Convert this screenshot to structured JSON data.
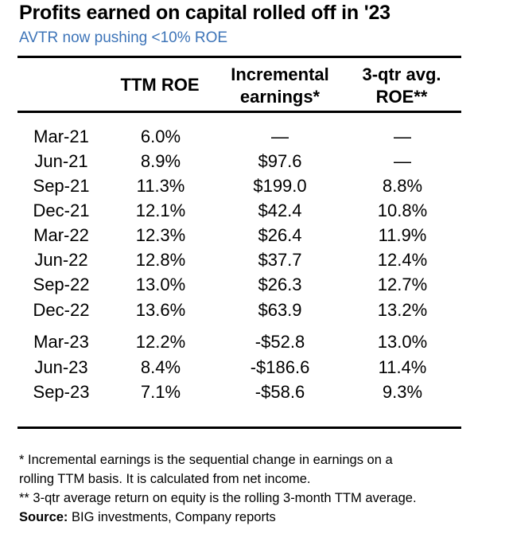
{
  "title": "Profits earned on capital rolled off in '23",
  "subtitle": "AVTR now pushing <10% ROE",
  "colors": {
    "subtitle": "#3d74b8",
    "rules": "#000000"
  },
  "chart_data": {
    "type": "table",
    "title": "Profits earned on capital rolled off in '23",
    "subtitle": "AVTR now pushing <10% ROE",
    "headers": {
      "date": "",
      "ttm_roe": "TTM ROE",
      "incremental_earnings": [
        "Incremental",
        "earnings*"
      ],
      "avg_roe": [
        "3-qtr avg.",
        "ROE**"
      ]
    },
    "rows": [
      {
        "date": "Mar-21",
        "ttm_roe": "6.0%",
        "inc": "—",
        "avg": "—"
      },
      {
        "date": "Jun-21",
        "ttm_roe": "8.9%",
        "inc": "$97.6",
        "avg": "—"
      },
      {
        "date": "Sep-21",
        "ttm_roe": "11.3%",
        "inc": "$199.0",
        "avg": "8.8%"
      },
      {
        "date": "Dec-21",
        "ttm_roe": "12.1%",
        "inc": "$42.4",
        "avg": "10.8%"
      },
      {
        "date": "Mar-22",
        "ttm_roe": "12.3%",
        "inc": "$26.4",
        "avg": "11.9%"
      },
      {
        "date": "Jun-22",
        "ttm_roe": "12.8%",
        "inc": "$37.7",
        "avg": "12.4%"
      },
      {
        "date": "Sep-22",
        "ttm_roe": "13.0%",
        "inc": "$26.3",
        "avg": "12.7%"
      },
      {
        "date": "Dec-22",
        "ttm_roe": "13.6%",
        "inc": "$63.9",
        "avg": "13.2%"
      },
      {
        "date": "Mar-23",
        "ttm_roe": "12.2%",
        "inc": "-$52.8",
        "avg": "13.0%"
      },
      {
        "date": "Jun-23",
        "ttm_roe": "8.4%",
        "inc": "-$186.6",
        "avg": "11.4%"
      },
      {
        "date": "Sep-23",
        "ttm_roe": "7.1%",
        "inc": "-$58.6",
        "avg": "9.3%"
      }
    ]
  },
  "footnotes": {
    "note1_line1": "* Incremental earnings is the sequential change in earnings on a",
    "note1_line2": "rolling TTM basis. It is calculated from net income.",
    "note2": "** 3-qtr average return on equity is the rolling 3-month TTM average.",
    "source_label": "Source:",
    "source_text": " BIG investments, Company reports"
  }
}
